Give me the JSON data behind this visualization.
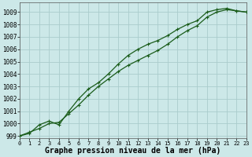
{
  "xlabel": "Graphe pression niveau de la mer (hPa)",
  "background_color": "#cce8e8",
  "grid_color": "#aacccc",
  "line_color": "#1a5c1a",
  "marker_color": "#1a5c1a",
  "xlim": [
    0,
    23
  ],
  "ylim": [
    998.8,
    1009.8
  ],
  "yticks": [
    999,
    1000,
    1001,
    1002,
    1003,
    1004,
    1005,
    1006,
    1007,
    1008,
    1009
  ],
  "xticks": [
    0,
    1,
    2,
    3,
    4,
    5,
    6,
    7,
    8,
    9,
    10,
    11,
    12,
    13,
    14,
    15,
    16,
    17,
    18,
    19,
    20,
    21,
    22,
    23
  ],
  "line1_x": [
    0,
    1,
    2,
    3,
    4,
    5,
    6,
    7,
    8,
    9,
    10,
    11,
    12,
    13,
    14,
    15,
    16,
    17,
    18,
    19,
    20,
    21,
    22,
    23
  ],
  "line1_y": [
    999.0,
    999.3,
    999.6,
    1000.0,
    1000.1,
    1000.8,
    1001.5,
    1002.3,
    1003.0,
    1003.6,
    1004.2,
    1004.7,
    1005.1,
    1005.5,
    1005.9,
    1006.4,
    1007.0,
    1007.5,
    1007.9,
    1008.6,
    1009.0,
    1009.2,
    1009.1,
    1009.0
  ],
  "line2_x": [
    0,
    1,
    2,
    3,
    4,
    5,
    6,
    7,
    8,
    9,
    10,
    11,
    12,
    13,
    14,
    15,
    16,
    17,
    18,
    19,
    20,
    21,
    22,
    23
  ],
  "line2_y": [
    999.0,
    999.2,
    999.9,
    1000.2,
    999.9,
    1001.0,
    1002.0,
    1002.8,
    1003.3,
    1004.0,
    1004.8,
    1005.5,
    1006.0,
    1006.4,
    1006.7,
    1007.1,
    1007.6,
    1008.0,
    1008.3,
    1009.0,
    1009.2,
    1009.3,
    1009.1,
    1009.0
  ],
  "xlabel_fontsize": 7,
  "ytick_fontsize": 5.5,
  "xtick_fontsize": 5.0
}
